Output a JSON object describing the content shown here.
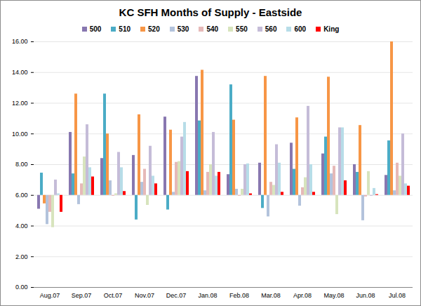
{
  "chart_data": {
    "type": "bar",
    "title": "KC SFH Months of Supply - Eastside",
    "categories": [
      "Aug.07",
      "Sep.07",
      "Oct.07",
      "Nov.07",
      "Dec.07",
      "Jan.08",
      "Feb.08",
      "Mar.08",
      "Apr.08",
      "May.08",
      "Jun.08",
      "Jul.08"
    ],
    "baseline": 6,
    "series": [
      {
        "name": "500",
        "color": "#8877b0",
        "values": [
          5.1,
          10.1,
          8.4,
          8.6,
          11.1,
          13.75,
          7.35,
          8.1,
          9.4,
          8.7,
          8.0,
          7.3
        ]
      },
      {
        "name": "510",
        "color": "#4bacc6",
        "values": [
          7.45,
          7.4,
          12.6,
          4.4,
          5.05,
          10.85,
          13.2,
          5.15,
          7.7,
          9.8,
          7.5,
          9.55
        ]
      },
      {
        "name": "520",
        "color": "#f79646",
        "values": [
          5.45,
          12.6,
          10.0,
          11.25,
          10.25,
          14.15,
          10.9,
          13.75,
          11.05,
          13.7,
          10.55,
          16.0
        ]
      },
      {
        "name": "530",
        "color": "#b3c3dc",
        "values": [
          4.1,
          5.4,
          6.95,
          6.85,
          6.2,
          6.3,
          6.4,
          4.6,
          5.3,
          7.4,
          4.35,
          6.3
        ]
      },
      {
        "name": "540",
        "color": "#e6b9b8",
        "values": [
          4.9,
          6.75,
          5.95,
          7.7,
          8.15,
          7.5,
          5.95,
          6.85,
          6.5,
          7.9,
          5.9,
          8.1
        ]
      },
      {
        "name": "550",
        "color": "#d7e4bd",
        "values": [
          3.9,
          8.5,
          6.1,
          5.35,
          8.2,
          8.0,
          6.4,
          6.65,
          7.15,
          4.75,
          7.55,
          7.25
        ]
      },
      {
        "name": "560",
        "color": "#c5bcd8",
        "values": [
          7.0,
          10.6,
          8.8,
          9.2,
          9.8,
          10.1,
          8.0,
          9.3,
          11.8,
          10.4,
          5.95,
          10.0
        ]
      },
      {
        "name": "600",
        "color": "#b7dde8",
        "values": [
          6.1,
          7.8,
          7.8,
          7.25,
          10.75,
          7.25,
          8.05,
          8.1,
          8.0,
          10.4,
          6.45,
          6.75
        ]
      },
      {
        "name": "King",
        "color": "#ff0000",
        "values": [
          4.9,
          7.2,
          6.25,
          6.75,
          7.55,
          7.5,
          6.1,
          6.2,
          6.2,
          6.95,
          6.05,
          6.6
        ]
      }
    ],
    "ylim": [
      0,
      16
    ],
    "yticks": [
      {
        "value": 0,
        "label": "0.00"
      },
      {
        "value": 2,
        "label": "2.00"
      },
      {
        "value": 4,
        "label": "4.00"
      },
      {
        "value": 6,
        "label": "6.00"
      },
      {
        "value": 8,
        "label": "8.00"
      },
      {
        "value": 10,
        "label": "10.00"
      },
      {
        "value": 12,
        "label": "12.00"
      },
      {
        "value": 14,
        "label": "14.00"
      },
      {
        "value": 16,
        "label": "16.00"
      }
    ],
    "grid": true,
    "legend": "top"
  }
}
